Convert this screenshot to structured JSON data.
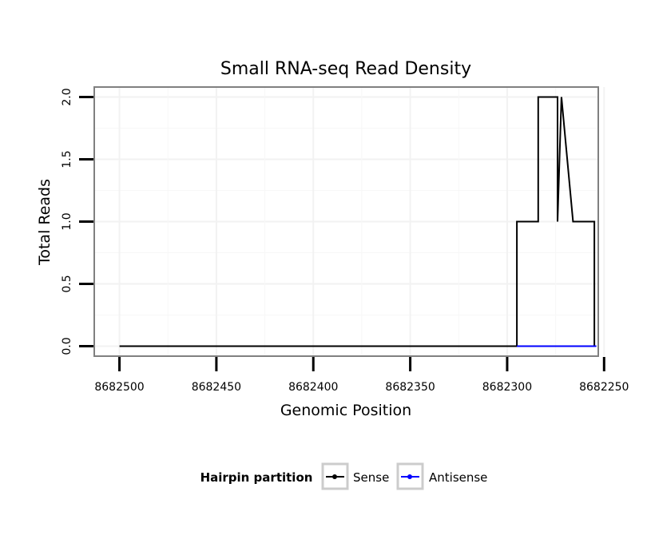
{
  "chart_data": {
    "type": "line",
    "title": "Small RNA-seq Read Density",
    "xlabel": "Genomic Position",
    "ylabel": "Total Reads",
    "x_reversed": true,
    "xlim": [
      8682513,
      8682253
    ],
    "ylim": [
      -0.08,
      2.08
    ],
    "x_ticks": [
      8682500,
      8682450,
      8682400,
      8682350,
      8682300,
      8682250
    ],
    "x_tick_labels": [
      "8682500",
      "8682450",
      "8682400",
      "8682350",
      "8682300",
      "8682250"
    ],
    "y_ticks": [
      0,
      0.5,
      1,
      1.5,
      2
    ],
    "y_tick_labels": [
      "0.0",
      "0.5",
      "1.0",
      "1.5",
      "2.0"
    ],
    "grid": true,
    "legend": {
      "title": "Hairpin partition",
      "position": "bottom"
    },
    "series": [
      {
        "name": "Sense",
        "color": "#000000",
        "x": [
          8682500,
          8682295,
          8682295,
          8682284,
          8682284,
          8682274,
          8682274,
          8682272,
          8682272,
          8682266,
          8682266,
          8682255,
          8682255
        ],
        "y": [
          0,
          0,
          1,
          1,
          2,
          2,
          1,
          2,
          2,
          1,
          1,
          1,
          0
        ]
      },
      {
        "name": "Antisense",
        "color": "#0000ff",
        "x": [
          8682295,
          8682254
        ],
        "y": [
          0,
          0
        ]
      }
    ]
  }
}
